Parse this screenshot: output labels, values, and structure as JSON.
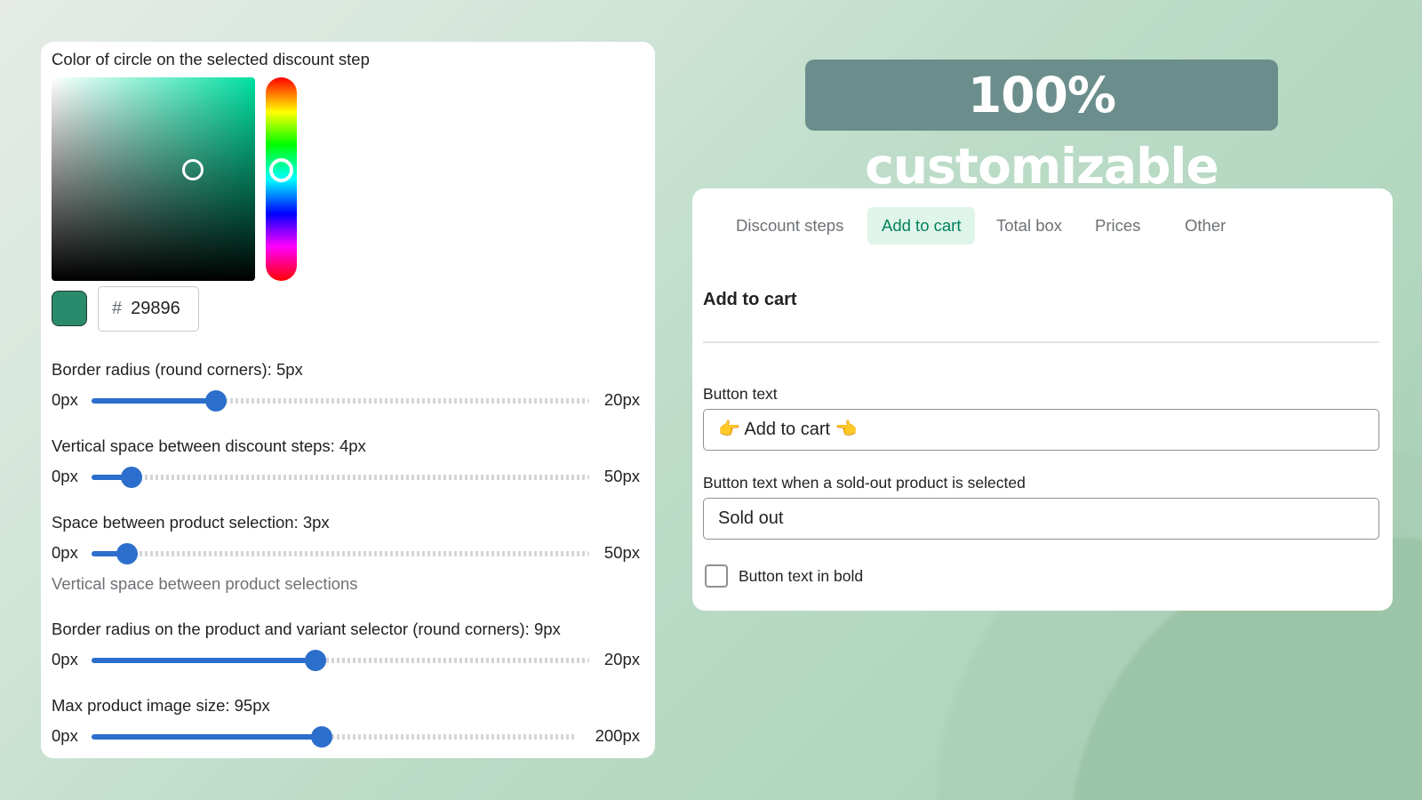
{
  "headline": "100% customizable",
  "color_picker": {
    "label": "Color of circle on the selected discount step",
    "hex_prefix": "#",
    "hex_value": "29896",
    "swatch_color": "#2a8a6c",
    "hue_color": "#00ffaa"
  },
  "sliders": [
    {
      "label": "Border radius (round corners): 5px",
      "min": "0px",
      "max": "20px",
      "value": 5,
      "range": [
        0,
        20
      ]
    },
    {
      "label": "Vertical space between discount steps: 4px",
      "min": "0px",
      "max": "50px",
      "value": 4,
      "range": [
        0,
        50
      ]
    },
    {
      "label": "Space between product selection: 3px",
      "min": "0px",
      "max": "50px",
      "value": 3,
      "range": [
        0,
        50
      ],
      "help": "Vertical space between product selections"
    },
    {
      "label": "Border radius on the product and variant selector (round corners): 9px",
      "min": "0px",
      "max": "20px",
      "value": 9,
      "range": [
        0,
        20
      ]
    },
    {
      "label": "Max product image size: 95px",
      "min": "0px",
      "max": "200px",
      "value": 95,
      "range": [
        0,
        200
      ]
    }
  ],
  "accent": "#2c6ecb",
  "settings": {
    "tabs": [
      {
        "label": "Discount steps"
      },
      {
        "label": "Add to cart",
        "active": true
      },
      {
        "label": "Total box"
      },
      {
        "label": "Prices"
      },
      {
        "label": "Other"
      }
    ],
    "section_title": "Add to cart",
    "button_text_label": "Button text",
    "button_text_value": "👉 Add to cart 👈",
    "soldout_label": "Button text when a sold-out product is selected",
    "soldout_value": "Sold out",
    "bold_label": "Button text in bold",
    "bold_checked": false
  }
}
